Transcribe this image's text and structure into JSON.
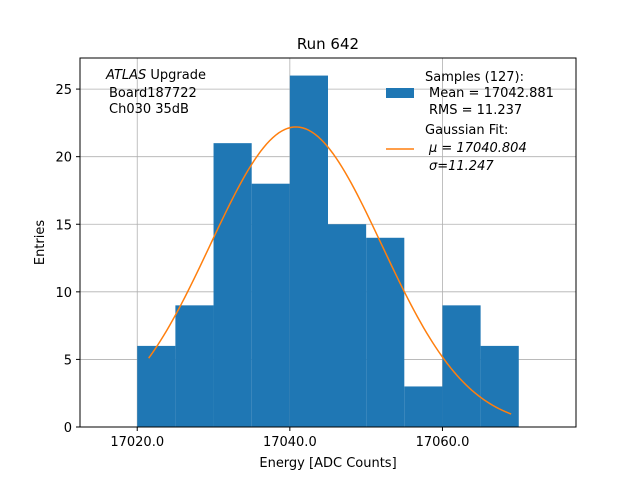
{
  "chart_data": {
    "type": "bar",
    "title": "Run 642",
    "xlabel": "Energy [ADC Counts]",
    "ylabel": "Entries",
    "xlim": [
      17012.5,
      17077.5
    ],
    "ylim": [
      0,
      27.3
    ],
    "grid": true,
    "x_ticks": [
      17020,
      17040,
      17060
    ],
    "x_tick_labels": [
      "17020.0",
      "17040.0",
      "17060.0"
    ],
    "y_ticks": [
      0,
      5,
      10,
      15,
      20,
      25
    ],
    "y_tick_labels": [
      "0",
      "5",
      "10",
      "15",
      "20",
      "25"
    ],
    "bin_edges": [
      17020,
      17025,
      17030,
      17035,
      17040,
      17045,
      17050,
      17055,
      17060,
      17065,
      17070
    ],
    "values": [
      6,
      9,
      21,
      18,
      26,
      15,
      14,
      3,
      9,
      6
    ],
    "bar_color": "#1f77b4",
    "fit": {
      "type": "gaussian",
      "mu": 17040.804,
      "sigma": 11.247,
      "amplitude": 22.2,
      "x_range": [
        17021.5,
        17069
      ],
      "color": "#ff7f0e"
    },
    "annotation": {
      "italic_part": "ATLAS",
      "rest": " Upgrade",
      "line2": "Board187722",
      "line3": "Ch030 35dB"
    },
    "legend": {
      "position": "top-right",
      "samples": {
        "label": "Samples (127):",
        "mean": "Mean = 17042.881",
        "rms": "RMS = 11.237"
      },
      "gaussian": {
        "label": "Gaussian Fit:",
        "mu": "μ = 17040.804",
        "sigma": "σ=11.247"
      }
    }
  }
}
